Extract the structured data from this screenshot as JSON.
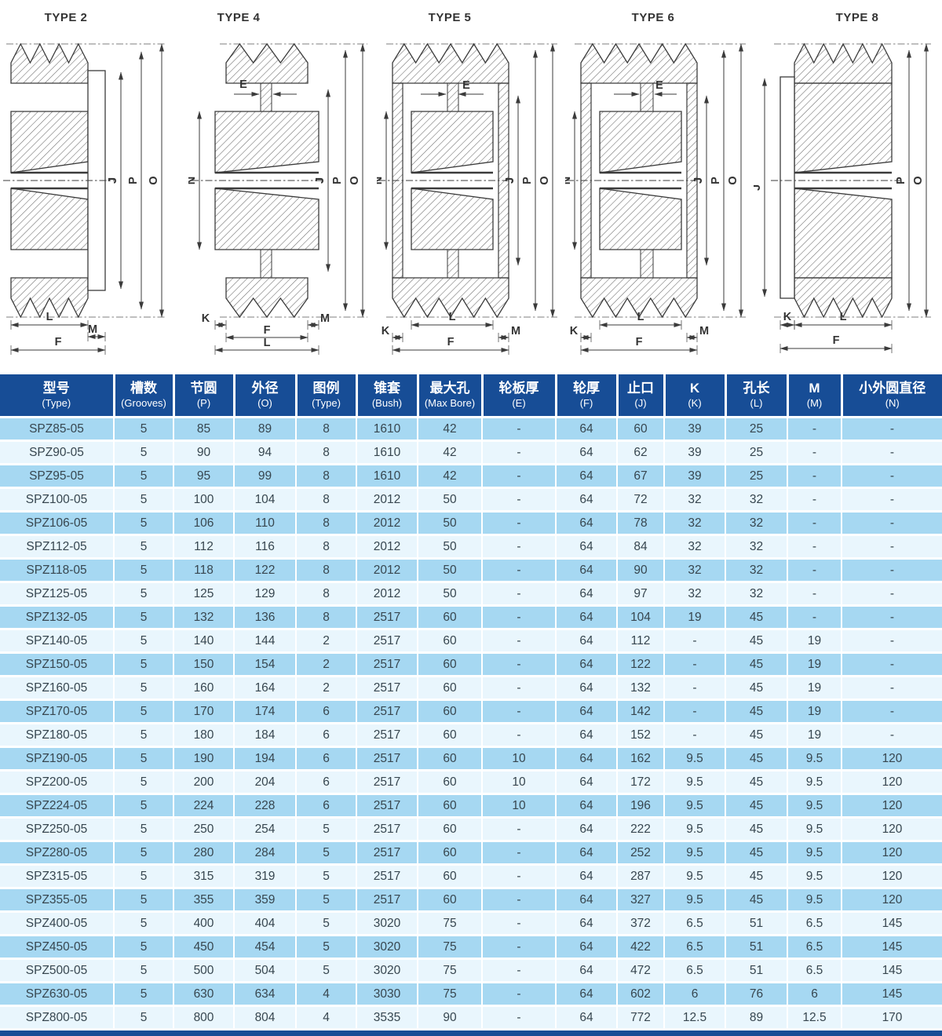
{
  "diagrams": {
    "titles": [
      "TYPE 2",
      "TYPE 4",
      "TYPE 5",
      "TYPE 6",
      "TYPE 8"
    ],
    "dims": {
      "E": "E",
      "F": "F",
      "J": "J",
      "K": "K",
      "L": "L",
      "M": "M",
      "N": "N",
      "O": "O",
      "P": "P"
    }
  },
  "table": {
    "columns": [
      {
        "zh": "型号",
        "en": "(Type)"
      },
      {
        "zh": "槽数",
        "en": "(Grooves)"
      },
      {
        "zh": "节圆",
        "en": "(P)"
      },
      {
        "zh": "外径",
        "en": "(O)"
      },
      {
        "zh": "图例",
        "en": "(Type)"
      },
      {
        "zh": "锥套",
        "en": "(Bush)"
      },
      {
        "zh": "最大孔",
        "en": "(Max Bore)"
      },
      {
        "zh": "轮板厚",
        "en": "(E)"
      },
      {
        "zh": "轮厚",
        "en": "(F)"
      },
      {
        "zh": "止口",
        "en": "(J)"
      },
      {
        "zh": "K",
        "en": "(K)"
      },
      {
        "zh": "孔长",
        "en": "(L)"
      },
      {
        "zh": "M",
        "en": "(M)"
      },
      {
        "zh": "小外圆直径",
        "en": "(N)"
      }
    ],
    "rows": [
      [
        "SPZ85-05",
        "5",
        "85",
        "89",
        "8",
        "1610",
        "42",
        "-",
        "64",
        "60",
        "39",
        "25",
        "-",
        "-"
      ],
      [
        "SPZ90-05",
        "5",
        "90",
        "94",
        "8",
        "1610",
        "42",
        "-",
        "64",
        "62",
        "39",
        "25",
        "-",
        "-"
      ],
      [
        "SPZ95-05",
        "5",
        "95",
        "99",
        "8",
        "1610",
        "42",
        "-",
        "64",
        "67",
        "39",
        "25",
        "-",
        "-"
      ],
      [
        "SPZ100-05",
        "5",
        "100",
        "104",
        "8",
        "2012",
        "50",
        "-",
        "64",
        "72",
        "32",
        "32",
        "-",
        "-"
      ],
      [
        "SPZ106-05",
        "5",
        "106",
        "110",
        "8",
        "2012",
        "50",
        "-",
        "64",
        "78",
        "32",
        "32",
        "-",
        "-"
      ],
      [
        "SPZ112-05",
        "5",
        "112",
        "116",
        "8",
        "2012",
        "50",
        "-",
        "64",
        "84",
        "32",
        "32",
        "-",
        "-"
      ],
      [
        "SPZ118-05",
        "5",
        "118",
        "122",
        "8",
        "2012",
        "50",
        "-",
        "64",
        "90",
        "32",
        "32",
        "-",
        "-"
      ],
      [
        "SPZ125-05",
        "5",
        "125",
        "129",
        "8",
        "2012",
        "50",
        "-",
        "64",
        "97",
        "32",
        "32",
        "-",
        "-"
      ],
      [
        "SPZ132-05",
        "5",
        "132",
        "136",
        "8",
        "2517",
        "60",
        "-",
        "64",
        "104",
        "19",
        "45",
        "-",
        "-"
      ],
      [
        "SPZ140-05",
        "5",
        "140",
        "144",
        "2",
        "2517",
        "60",
        "-",
        "64",
        "112",
        "-",
        "45",
        "19",
        "-"
      ],
      [
        "SPZ150-05",
        "5",
        "150",
        "154",
        "2",
        "2517",
        "60",
        "-",
        "64",
        "122",
        "-",
        "45",
        "19",
        "-"
      ],
      [
        "SPZ160-05",
        "5",
        "160",
        "164",
        "2",
        "2517",
        "60",
        "-",
        "64",
        "132",
        "-",
        "45",
        "19",
        "-"
      ],
      [
        "SPZ170-05",
        "5",
        "170",
        "174",
        "6",
        "2517",
        "60",
        "-",
        "64",
        "142",
        "-",
        "45",
        "19",
        "-"
      ],
      [
        "SPZ180-05",
        "5",
        "180",
        "184",
        "6",
        "2517",
        "60",
        "-",
        "64",
        "152",
        "-",
        "45",
        "19",
        "-"
      ],
      [
        "SPZ190-05",
        "5",
        "190",
        "194",
        "6",
        "2517",
        "60",
        "10",
        "64",
        "162",
        "9.5",
        "45",
        "9.5",
        "120"
      ],
      [
        "SPZ200-05",
        "5",
        "200",
        "204",
        "6",
        "2517",
        "60",
        "10",
        "64",
        "172",
        "9.5",
        "45",
        "9.5",
        "120"
      ],
      [
        "SPZ224-05",
        "5",
        "224",
        "228",
        "6",
        "2517",
        "60",
        "10",
        "64",
        "196",
        "9.5",
        "45",
        "9.5",
        "120"
      ],
      [
        "SPZ250-05",
        "5",
        "250",
        "254",
        "5",
        "2517",
        "60",
        "-",
        "64",
        "222",
        "9.5",
        "45",
        "9.5",
        "120"
      ],
      [
        "SPZ280-05",
        "5",
        "280",
        "284",
        "5",
        "2517",
        "60",
        "-",
        "64",
        "252",
        "9.5",
        "45",
        "9.5",
        "120"
      ],
      [
        "SPZ315-05",
        "5",
        "315",
        "319",
        "5",
        "2517",
        "60",
        "-",
        "64",
        "287",
        "9.5",
        "45",
        "9.5",
        "120"
      ],
      [
        "SPZ355-05",
        "5",
        "355",
        "359",
        "5",
        "2517",
        "60",
        "-",
        "64",
        "327",
        "9.5",
        "45",
        "9.5",
        "120"
      ],
      [
        "SPZ400-05",
        "5",
        "400",
        "404",
        "5",
        "3020",
        "75",
        "-",
        "64",
        "372",
        "6.5",
        "51",
        "6.5",
        "145"
      ],
      [
        "SPZ450-05",
        "5",
        "450",
        "454",
        "5",
        "3020",
        "75",
        "-",
        "64",
        "422",
        "6.5",
        "51",
        "6.5",
        "145"
      ],
      [
        "SPZ500-05",
        "5",
        "500",
        "504",
        "5",
        "3020",
        "75",
        "-",
        "64",
        "472",
        "6.5",
        "51",
        "6.5",
        "145"
      ],
      [
        "SPZ630-05",
        "5",
        "630",
        "634",
        "4",
        "3030",
        "75",
        "-",
        "64",
        "602",
        "6",
        "76",
        "6",
        "145"
      ],
      [
        "SPZ800-05",
        "5",
        "800",
        "804",
        "4",
        "3535",
        "90",
        "-",
        "64",
        "772",
        "12.5",
        "89",
        "12.5",
        "170"
      ]
    ]
  },
  "colors": {
    "header_blue": "#174d96",
    "row_blue": "#a6d8f2",
    "row_light": "#e9f6fd",
    "body_text": "#37464f",
    "drawing_line": "#3b3b3b",
    "bottom_bar": "#174d96"
  }
}
